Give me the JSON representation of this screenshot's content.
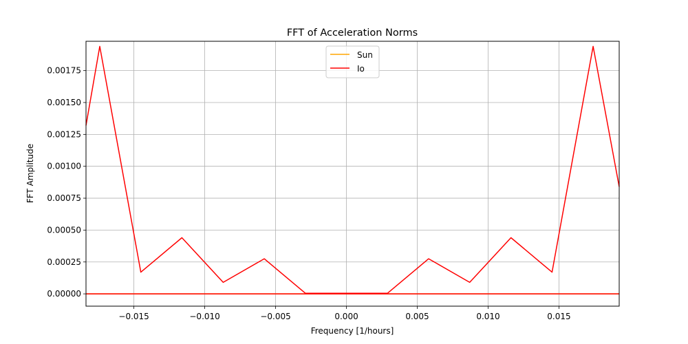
{
  "chart_data": {
    "type": "line",
    "title": "FFT of Acceleration Norms",
    "xlabel": "Frequency [1/hours]",
    "ylabel": "FFT Amplitude",
    "xlim": [
      -0.01838,
      0.01925
    ],
    "ylim": [
      -9.65e-05,
      0.00198
    ],
    "xticks": [
      -0.015,
      -0.01,
      -0.005,
      0.0,
      0.005,
      0.01,
      0.015
    ],
    "xtick_labels": [
      "−0.015",
      "−0.010",
      "−0.005",
      "0.000",
      "0.005",
      "0.010",
      "0.015"
    ],
    "yticks": [
      0.0,
      0.00025,
      0.0005,
      0.00075,
      0.001,
      0.00125,
      0.0015,
      0.00175
    ],
    "ytick_labels": [
      "0.00000",
      "0.00025",
      "0.00050",
      "0.00075",
      "0.00100",
      "0.00125",
      "0.00150",
      "0.00175"
    ],
    "grid": true,
    "legend_position": "top-center",
    "series": [
      {
        "name": "Sun",
        "color": "#ffa500",
        "x": [
          -0.01838,
          0.01925
        ],
        "y": [
          0.0,
          0.0
        ]
      },
      {
        "name": "Io",
        "color": "#ff0000",
        "x": [
          -0.01838,
          -0.01741,
          -0.01451,
          -0.01161,
          -0.0087,
          -0.0058,
          -0.0029,
          0.0029,
          0.0058,
          0.0087,
          0.01161,
          0.01451,
          0.01741,
          0.01925
        ],
        "y": [
          0.00132,
          0.00194,
          0.00017,
          0.00044,
          9e-05,
          0.000275,
          5e-06,
          5e-06,
          0.000275,
          9e-05,
          0.00044,
          0.00017,
          0.00194,
          0.00084
        ]
      },
      {
        "name": "",
        "color": "#ff0000",
        "x": [
          -0.01838,
          0.01925
        ],
        "y": [
          0.0,
          0.0
        ]
      }
    ]
  }
}
